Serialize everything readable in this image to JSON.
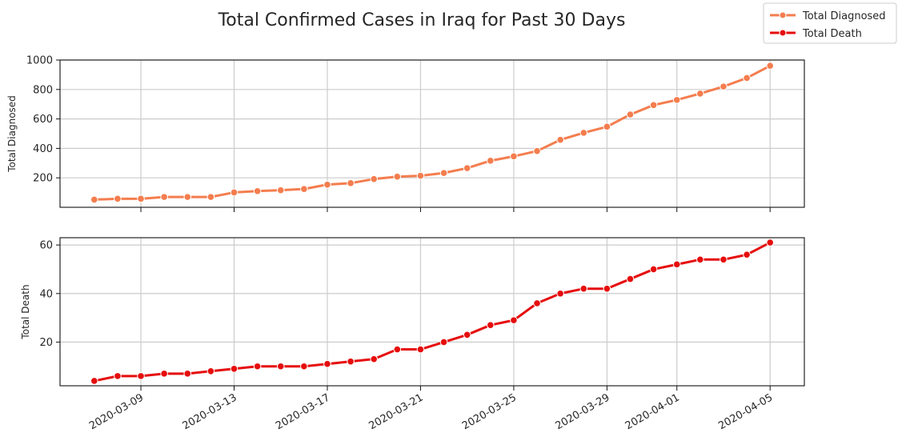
{
  "chart_data": {
    "type": "line",
    "title": "Total Confirmed Cases in Iraq for Past 30 Days",
    "x": [
      "2020-03-07",
      "2020-03-08",
      "2020-03-09",
      "2020-03-10",
      "2020-03-11",
      "2020-03-12",
      "2020-03-13",
      "2020-03-14",
      "2020-03-15",
      "2020-03-16",
      "2020-03-17",
      "2020-03-18",
      "2020-03-19",
      "2020-03-20",
      "2020-03-21",
      "2020-03-22",
      "2020-03-23",
      "2020-03-24",
      "2020-03-25",
      "2020-03-26",
      "2020-03-27",
      "2020-03-28",
      "2020-03-29",
      "2020-03-30",
      "2020-03-31",
      "2020-04-01",
      "2020-04-02",
      "2020-04-03",
      "2020-04-04",
      "2020-04-05"
    ],
    "x_ticks": [
      "2020-03-09",
      "2020-03-13",
      "2020-03-17",
      "2020-03-21",
      "2020-03-25",
      "2020-03-29",
      "2020-04-01",
      "2020-04-05"
    ],
    "legend": {
      "placement": "top-right",
      "entries": [
        {
          "name": "Total Diagnosed",
          "color": "#f47d4e"
        },
        {
          "name": "Total Death",
          "color": "#e60d0d"
        }
      ]
    },
    "grid": true,
    "panels": [
      {
        "ylabel": "Total Diagnosed",
        "series_name": "Total Diagnosed",
        "color": "#f47d4e",
        "ylim": [
          0,
          1000
        ],
        "yticks": [
          200,
          400,
          600,
          800,
          1000
        ],
        "values": [
          52,
          58,
          58,
          70,
          70,
          70,
          101,
          110,
          116,
          124,
          154,
          164,
          192,
          208,
          214,
          233,
          266,
          316,
          346,
          382,
          458,
          506,
          547,
          630,
          694,
          729,
          772,
          820,
          878,
          961
        ]
      },
      {
        "ylabel": "Total Death",
        "series_name": "Total Death",
        "color": "#e60d0d",
        "ylim": [
          2,
          63
        ],
        "yticks": [
          20,
          40,
          60
        ],
        "values": [
          4,
          6,
          6,
          7,
          7,
          8,
          9,
          10,
          10,
          10,
          11,
          12,
          13,
          17,
          17,
          20,
          23,
          27,
          29,
          36,
          40,
          42,
          42,
          46,
          50,
          52,
          54,
          54,
          56,
          61
        ]
      }
    ]
  }
}
